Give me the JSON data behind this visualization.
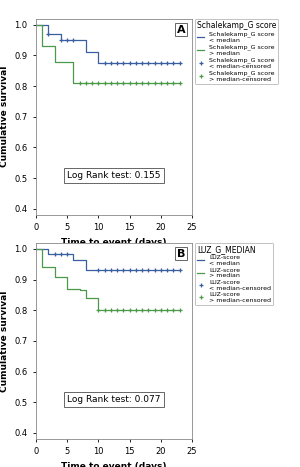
{
  "panel_A": {
    "title": "Schalekamp_G score",
    "panel_label": "A",
    "log_rank": "Log Rank test: 0.155",
    "blue": {
      "label_line": "Schalekamp_G score\n< median",
      "label_censor": "Schalekamp_G score\n< median-censored",
      "times": [
        0,
        1,
        2,
        3,
        4,
        5,
        6,
        7,
        8,
        9,
        10,
        11,
        12,
        13,
        14,
        15,
        16,
        17,
        18,
        19,
        20,
        21,
        22,
        23
      ],
      "survival": [
        1.0,
        1.0,
        0.97,
        0.97,
        0.95,
        0.95,
        0.95,
        0.95,
        0.91,
        0.91,
        0.875,
        0.875,
        0.875,
        0.875,
        0.875,
        0.875,
        0.875,
        0.875,
        0.875,
        0.875,
        0.875,
        0.875,
        0.875,
        0.875
      ],
      "censor_times": [
        2,
        4,
        5,
        6,
        11,
        12,
        13,
        14,
        15,
        16,
        17,
        18,
        19,
        20,
        21,
        22,
        23
      ],
      "censor_surv": [
        0.97,
        0.95,
        0.95,
        0.95,
        0.875,
        0.875,
        0.875,
        0.875,
        0.875,
        0.875,
        0.875,
        0.875,
        0.875,
        0.875,
        0.875,
        0.875,
        0.875
      ],
      "color": "#3a5fa0"
    },
    "green": {
      "label_line": "Schalekamp_G score\n> median",
      "label_censor": "Schalekamp_G score\n> median-censored",
      "times": [
        0,
        1,
        2,
        3,
        4,
        5,
        6,
        7,
        8,
        9,
        10,
        11,
        12,
        13,
        14,
        15,
        16,
        17,
        18,
        19,
        20,
        21,
        22,
        23
      ],
      "survival": [
        1.0,
        0.93,
        0.93,
        0.88,
        0.88,
        0.88,
        0.81,
        0.81,
        0.81,
        0.81,
        0.81,
        0.81,
        0.81,
        0.81,
        0.81,
        0.81,
        0.81,
        0.81,
        0.81,
        0.81,
        0.81,
        0.81,
        0.81,
        0.81
      ],
      "censor_times": [
        7,
        8,
        9,
        10,
        11,
        12,
        13,
        14,
        15,
        16,
        17,
        18,
        19,
        20,
        21,
        22,
        23
      ],
      "censor_surv": [
        0.81,
        0.81,
        0.81,
        0.81,
        0.81,
        0.81,
        0.81,
        0.81,
        0.81,
        0.81,
        0.81,
        0.81,
        0.81,
        0.81,
        0.81,
        0.81,
        0.81
      ],
      "color": "#4a9a4a"
    },
    "ylim": [
      0.38,
      1.02
    ],
    "xlim": [
      0,
      25
    ],
    "yticks": [
      0.4,
      0.5,
      0.6,
      0.7,
      0.8,
      0.9,
      1.0
    ],
    "xticks": [
      0,
      5,
      10,
      15,
      20,
      25
    ],
    "xlabel": "Time to event (days)",
    "ylabel": "Cumulative survival"
  },
  "panel_B": {
    "title": "LUZ_G_MEDIAN",
    "panel_label": "B",
    "log_rank": "Log Rank test: 0.077",
    "blue": {
      "label_line": "LUZ-score\n< median",
      "label_censor": "LUZ-score\n< median-censored",
      "times": [
        0,
        1,
        2,
        3,
        4,
        5,
        6,
        7,
        8,
        9,
        10,
        11,
        12,
        13,
        14,
        15,
        16,
        17,
        18,
        19,
        20,
        21,
        22,
        23
      ],
      "survival": [
        1.0,
        1.0,
        0.985,
        0.985,
        0.985,
        0.985,
        0.965,
        0.965,
        0.93,
        0.93,
        0.93,
        0.93,
        0.93,
        0.93,
        0.93,
        0.93,
        0.93,
        0.93,
        0.93,
        0.93,
        0.93,
        0.93,
        0.93,
        0.93
      ],
      "censor_times": [
        3,
        4,
        5,
        10,
        11,
        12,
        13,
        14,
        15,
        16,
        17,
        18,
        19,
        20,
        21,
        22,
        23
      ],
      "censor_surv": [
        0.985,
        0.985,
        0.985,
        0.93,
        0.93,
        0.93,
        0.93,
        0.93,
        0.93,
        0.93,
        0.93,
        0.93,
        0.93,
        0.93,
        0.93,
        0.93,
        0.93
      ],
      "color": "#3a5fa0"
    },
    "green": {
      "label_line": "LUZ-score\n> median",
      "label_censor": "LUZ-score\n> median-censored",
      "times": [
        0,
        1,
        2,
        3,
        4,
        5,
        6,
        7,
        8,
        9,
        10,
        11,
        12,
        13,
        14,
        15,
        16,
        17,
        18,
        19,
        20,
        21,
        22,
        23
      ],
      "survival": [
        1.0,
        0.94,
        0.94,
        0.91,
        0.91,
        0.87,
        0.87,
        0.865,
        0.84,
        0.84,
        0.8,
        0.8,
        0.8,
        0.8,
        0.8,
        0.8,
        0.8,
        0.8,
        0.8,
        0.8,
        0.8,
        0.8,
        0.8,
        0.8
      ],
      "censor_times": [
        10,
        11,
        12,
        13,
        14,
        15,
        16,
        17,
        18,
        19,
        20,
        21,
        22,
        23
      ],
      "censor_surv": [
        0.8,
        0.8,
        0.8,
        0.8,
        0.8,
        0.8,
        0.8,
        0.8,
        0.8,
        0.8,
        0.8,
        0.8,
        0.8,
        0.8
      ],
      "color": "#4a9a4a"
    },
    "ylim": [
      0.38,
      1.02
    ],
    "xlim": [
      0,
      25
    ],
    "yticks": [
      0.4,
      0.5,
      0.6,
      0.7,
      0.8,
      0.9,
      1.0
    ],
    "xticks": [
      0,
      5,
      10,
      15,
      20,
      25
    ],
    "xlabel": "Time to event (days)",
    "ylabel": "Cumulative survival"
  },
  "bg_color": "#ffffff",
  "fig_bg": "#ffffff",
  "legend_title_fontsize": 5.5,
  "legend_fontsize": 4.5,
  "axis_label_fontsize": 6.5,
  "tick_fontsize": 6,
  "logrank_fontsize": 6.5,
  "panel_label_fontsize": 8
}
